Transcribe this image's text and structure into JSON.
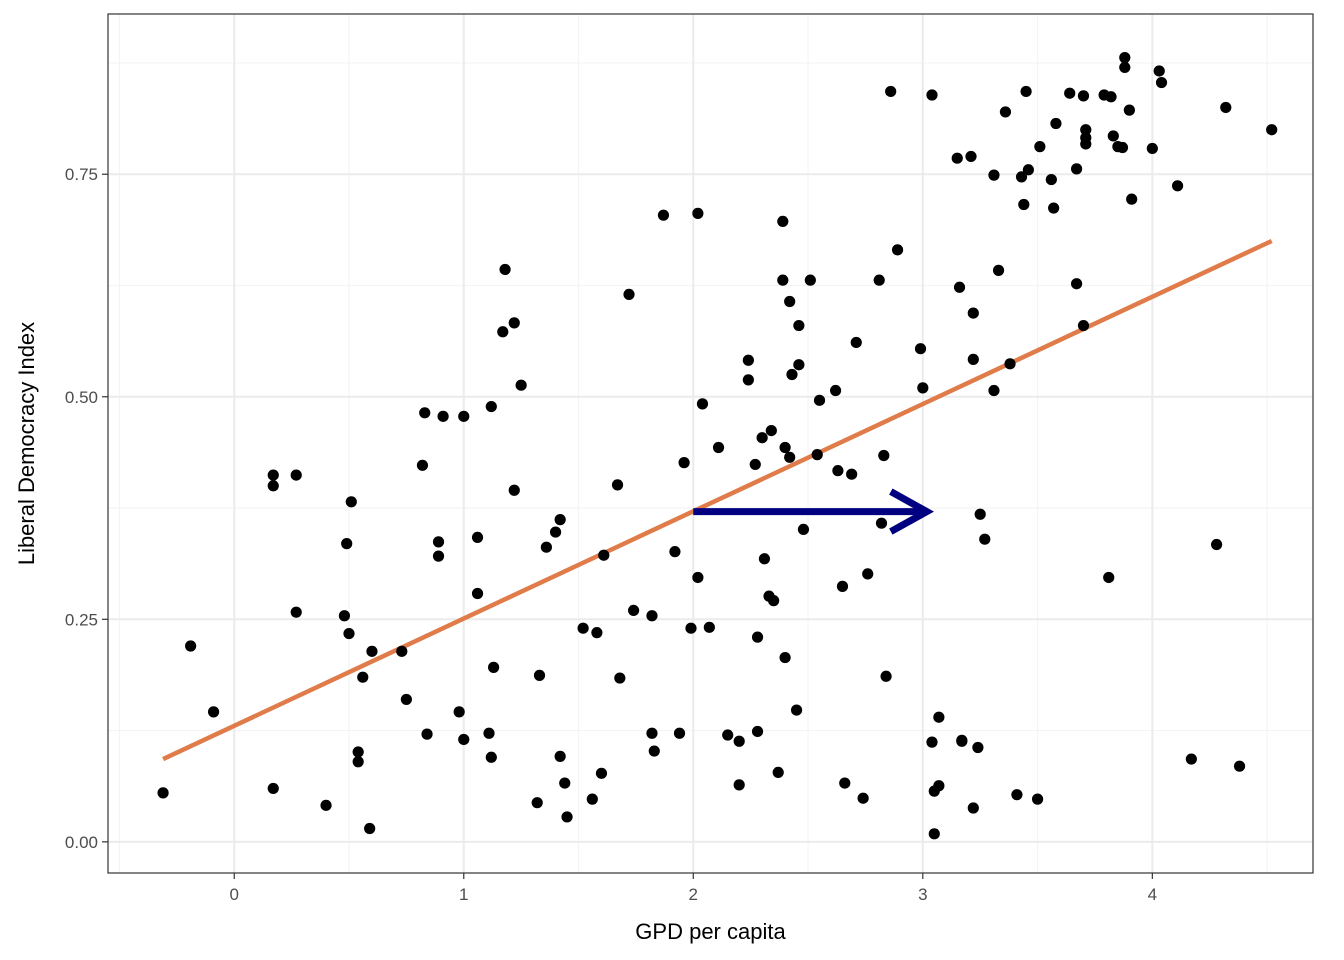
{
  "chart_data": {
    "type": "scatter",
    "title": "",
    "xlabel": "GPD per capita",
    "ylabel": "Liberal Democracy Index",
    "xlim": [
      -0.55,
      4.7
    ],
    "ylim": [
      -0.035,
      0.93
    ],
    "x_ticks": [
      0,
      1,
      2,
      3,
      4
    ],
    "x_tick_labels": [
      "0",
      "1",
      "2",
      "3",
      "4"
    ],
    "y_ticks": [
      0.0,
      0.25,
      0.5,
      0.75
    ],
    "y_tick_labels": [
      "0.00",
      "0.25",
      "0.50",
      "0.75"
    ],
    "grid": true,
    "theme": "bw",
    "colors": {
      "points": "#000000",
      "fit_line": "#E07B4A",
      "arrow": "#000080",
      "grid_major": "#EBEBEB",
      "grid_minor": "#F4F4F4",
      "frame": "#333333"
    },
    "points": [
      [
        -0.31,
        0.055
      ],
      [
        -0.19,
        0.22
      ],
      [
        -0.09,
        0.146
      ],
      [
        0.17,
        0.412
      ],
      [
        0.17,
        0.4
      ],
      [
        0.27,
        0.412
      ],
      [
        0.17,
        0.06
      ],
      [
        0.27,
        0.258
      ],
      [
        0.4,
        0.041
      ],
      [
        0.48,
        0.254
      ],
      [
        0.49,
        0.335
      ],
      [
        0.5,
        0.234
      ],
      [
        0.51,
        0.382
      ],
      [
        0.54,
        0.101
      ],
      [
        0.54,
        0.09
      ],
      [
        0.56,
        0.185
      ],
      [
        0.59,
        0.015
      ],
      [
        0.6,
        0.214
      ],
      [
        0.73,
        0.214
      ],
      [
        0.75,
        0.16
      ],
      [
        0.82,
        0.423
      ],
      [
        0.83,
        0.482
      ],
      [
        0.84,
        0.121
      ],
      [
        0.89,
        0.337
      ],
      [
        0.89,
        0.321
      ],
      [
        0.91,
        0.478
      ],
      [
        0.98,
        0.146
      ],
      [
        1.0,
        0.115
      ],
      [
        1.0,
        0.478
      ],
      [
        1.06,
        0.342
      ],
      [
        1.06,
        0.279
      ],
      [
        1.11,
        0.122
      ],
      [
        1.12,
        0.095
      ],
      [
        1.12,
        0.489
      ],
      [
        1.13,
        0.196
      ],
      [
        1.17,
        0.573
      ],
      [
        1.18,
        0.643
      ],
      [
        1.22,
        0.583
      ],
      [
        1.22,
        0.395
      ],
      [
        1.25,
        0.513
      ],
      [
        1.32,
        0.044
      ],
      [
        1.33,
        0.187
      ],
      [
        1.36,
        0.331
      ],
      [
        1.4,
        0.348
      ],
      [
        1.42,
        0.362
      ],
      [
        1.42,
        0.096
      ],
      [
        1.44,
        0.066
      ],
      [
        1.45,
        0.028
      ],
      [
        1.52,
        0.24
      ],
      [
        1.56,
        0.048
      ],
      [
        1.58,
        0.235
      ],
      [
        1.6,
        0.077
      ],
      [
        1.61,
        0.322
      ],
      [
        1.67,
        0.401
      ],
      [
        1.68,
        0.184
      ],
      [
        1.72,
        0.615
      ],
      [
        1.74,
        0.26
      ],
      [
        1.82,
        0.254
      ],
      [
        1.82,
        0.122
      ],
      [
        1.83,
        0.102
      ],
      [
        1.87,
        0.704
      ],
      [
        1.92,
        0.326
      ],
      [
        1.94,
        0.122
      ],
      [
        1.96,
        0.426
      ],
      [
        1.99,
        0.24
      ],
      [
        2.02,
        0.706
      ],
      [
        2.02,
        0.297
      ],
      [
        2.04,
        0.492
      ],
      [
        2.07,
        0.241
      ],
      [
        2.11,
        0.443
      ],
      [
        2.15,
        0.12
      ],
      [
        2.2,
        0.113
      ],
      [
        2.2,
        0.064
      ],
      [
        2.24,
        0.541
      ],
      [
        2.24,
        0.519
      ],
      [
        2.27,
        0.424
      ],
      [
        2.28,
        0.23
      ],
      [
        2.28,
        0.124
      ],
      [
        2.3,
        0.454
      ],
      [
        2.31,
        0.318
      ],
      [
        2.33,
        0.276
      ],
      [
        2.34,
        0.462
      ],
      [
        2.35,
        0.271
      ],
      [
        2.37,
        0.078
      ],
      [
        2.39,
        0.697
      ],
      [
        2.39,
        0.631
      ],
      [
        2.4,
        0.443
      ],
      [
        2.4,
        0.207
      ],
      [
        2.42,
        0.432
      ],
      [
        2.42,
        0.607
      ],
      [
        2.43,
        0.525
      ],
      [
        2.45,
        0.148
      ],
      [
        2.46,
        0.58
      ],
      [
        2.46,
        0.536
      ],
      [
        2.48,
        0.351
      ],
      [
        2.51,
        0.631
      ],
      [
        2.54,
        0.435
      ],
      [
        2.55,
        0.496
      ],
      [
        2.62,
        0.507
      ],
      [
        2.63,
        0.417
      ],
      [
        2.65,
        0.287
      ],
      [
        2.66,
        0.066
      ],
      [
        2.69,
        0.413
      ],
      [
        2.71,
        0.561
      ],
      [
        2.74,
        0.049
      ],
      [
        2.76,
        0.301
      ],
      [
        2.81,
        0.631
      ],
      [
        2.82,
        0.358
      ],
      [
        2.83,
        0.434
      ],
      [
        2.84,
        0.186
      ],
      [
        2.86,
        0.843
      ],
      [
        2.89,
        0.665
      ],
      [
        2.99,
        0.554
      ],
      [
        3.0,
        0.51
      ],
      [
        3.04,
        0.839
      ],
      [
        3.04,
        0.112
      ],
      [
        3.05,
        0.057
      ],
      [
        3.05,
        0.009
      ],
      [
        3.07,
        0.14
      ],
      [
        3.07,
        0.063
      ],
      [
        3.15,
        0.768
      ],
      [
        3.16,
        0.623
      ],
      [
        3.17,
        0.113
      ],
      [
        3.17,
        0.114
      ],
      [
        3.21,
        0.77
      ],
      [
        3.22,
        0.594
      ],
      [
        3.22,
        0.542
      ],
      [
        3.22,
        0.038
      ],
      [
        3.24,
        0.106
      ],
      [
        3.25,
        0.368
      ],
      [
        3.27,
        0.34
      ],
      [
        3.31,
        0.507
      ],
      [
        3.31,
        0.749
      ],
      [
        3.33,
        0.642
      ],
      [
        3.36,
        0.82
      ],
      [
        3.38,
        0.537
      ],
      [
        3.41,
        0.053
      ],
      [
        3.43,
        0.747
      ],
      [
        3.44,
        0.716
      ],
      [
        3.45,
        0.843
      ],
      [
        3.46,
        0.755
      ],
      [
        3.5,
        0.048
      ],
      [
        3.51,
        0.781
      ],
      [
        3.56,
        0.744
      ],
      [
        3.57,
        0.712
      ],
      [
        3.58,
        0.807
      ],
      [
        3.64,
        0.841
      ],
      [
        3.67,
        0.756
      ],
      [
        3.67,
        0.627
      ],
      [
        3.7,
        0.58
      ],
      [
        3.7,
        0.838
      ],
      [
        3.71,
        0.8
      ],
      [
        3.71,
        0.791
      ],
      [
        3.71,
        0.784
      ],
      [
        3.79,
        0.839
      ],
      [
        3.81,
        0.297
      ],
      [
        3.82,
        0.837
      ],
      [
        3.83,
        0.793
      ],
      [
        3.85,
        0.781
      ],
      [
        3.87,
        0.78
      ],
      [
        3.88,
        0.881
      ],
      [
        3.88,
        0.87
      ],
      [
        3.9,
        0.822
      ],
      [
        3.91,
        0.722
      ],
      [
        4.0,
        0.779
      ],
      [
        4.03,
        0.866
      ],
      [
        4.04,
        0.853
      ],
      [
        4.11,
        0.737
      ],
      [
        4.17,
        0.093
      ],
      [
        4.28,
        0.334
      ],
      [
        4.32,
        0.825
      ],
      [
        4.38,
        0.085
      ],
      [
        4.52,
        0.8
      ]
    ],
    "fit_line": {
      "x": [
        -0.31,
        4.52
      ],
      "y": [
        0.093,
        0.675
      ]
    },
    "annotations": [
      {
        "type": "arrow",
        "from": [
          2.0,
          0.371
        ],
        "to": [
          3.0,
          0.371
        ]
      }
    ]
  }
}
